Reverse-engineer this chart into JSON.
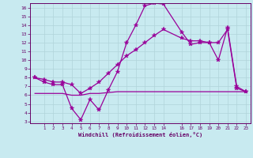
{
  "xlabel": "Windchill (Refroidissement éolien,°C)",
  "background_color": "#c8eaf0",
  "line_color": "#990099",
  "xlim": [
    -0.5,
    23.5
  ],
  "ylim": [
    2.8,
    16.5
  ],
  "xticks": [
    1,
    2,
    3,
    4,
    5,
    6,
    7,
    8,
    9,
    10,
    11,
    12,
    13,
    14,
    16,
    17,
    18,
    19,
    20,
    21,
    22,
    23
  ],
  "yticks": [
    3,
    4,
    5,
    6,
    7,
    8,
    9,
    10,
    11,
    12,
    13,
    14,
    15,
    16
  ],
  "line1_x": [
    0,
    1,
    2,
    3,
    4,
    5,
    6,
    7,
    8,
    9,
    10,
    11,
    12,
    13,
    14,
    16,
    17,
    18,
    19,
    20,
    21,
    22,
    23
  ],
  "line1_y": [
    8.0,
    7.5,
    7.2,
    7.2,
    4.5,
    3.2,
    5.5,
    4.3,
    6.6,
    8.7,
    12.0,
    14.0,
    16.2,
    16.5,
    16.4,
    13.2,
    11.8,
    12.0,
    12.0,
    10.0,
    13.7,
    7.0,
    6.4
  ],
  "line2_x": [
    0,
    1,
    2,
    3,
    4,
    5,
    6,
    7,
    8,
    9,
    10,
    11,
    12,
    13,
    14,
    16,
    17,
    18,
    19,
    20,
    21,
    22,
    23
  ],
  "line2_y": [
    8.0,
    7.8,
    7.5,
    7.5,
    7.2,
    6.2,
    6.8,
    7.5,
    8.5,
    9.5,
    10.5,
    11.2,
    12.0,
    12.8,
    13.5,
    12.5,
    12.2,
    12.2,
    12.0,
    12.0,
    13.5,
    6.8,
    6.4
  ],
  "line3_x": [
    0,
    1,
    2,
    3,
    4,
    5,
    6,
    7,
    8,
    9,
    10,
    11,
    12,
    13,
    14,
    16,
    17,
    18,
    19,
    20,
    21,
    22,
    23
  ],
  "line3_y": [
    6.2,
    6.2,
    6.2,
    6.2,
    6.0,
    6.0,
    6.2,
    6.2,
    6.3,
    6.4,
    6.4,
    6.4,
    6.4,
    6.4,
    6.4,
    6.4,
    6.4,
    6.4,
    6.4,
    6.4,
    6.4,
    6.4,
    6.4
  ]
}
